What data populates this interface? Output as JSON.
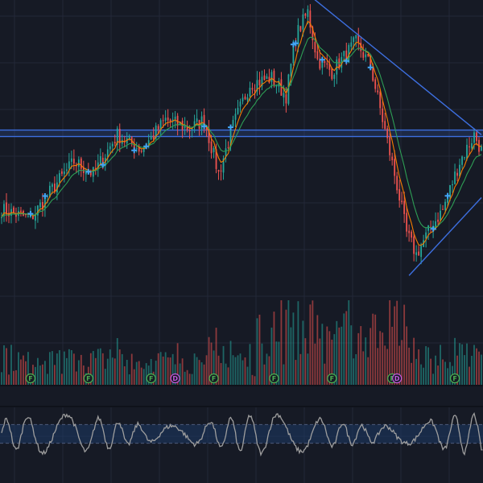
{
  "theme": {
    "background": "#161a25",
    "grid": "#232838",
    "separator": "#0f121a",
    "candle_up": "#26a69a",
    "candle_down": "#ef5350",
    "ma_fast": "#f57c00",
    "ma_slow": "#2e9e55",
    "trendline": "#3d6fe0",
    "signal_marker": "#42a5f5",
    "oscillator_line": "#9e9e9e",
    "oscillator_band": "#1e3a66",
    "badge_f": "#4caf50",
    "badge_d": "#c158dc"
  },
  "chart_data": {
    "type": "candlestick",
    "indicators": [
      "fast moving average (orange)",
      "slow moving average (green)",
      "volume histogram",
      "oscillator with band"
    ],
    "x_range": [
      0,
      200
    ],
    "y_range": [
      0,
      100
    ],
    "close_keypoints": [
      [
        0,
        30
      ],
      [
        12,
        27
      ],
      [
        22,
        38
      ],
      [
        30,
        46
      ],
      [
        38,
        42
      ],
      [
        48,
        55
      ],
      [
        58,
        50
      ],
      [
        68,
        60
      ],
      [
        78,
        57
      ],
      [
        84,
        60
      ],
      [
        90,
        42
      ],
      [
        96,
        58
      ],
      [
        103,
        72
      ],
      [
        112,
        74
      ],
      [
        118,
        68
      ],
      [
        122,
        88
      ],
      [
        127,
        96
      ],
      [
        131,
        80
      ],
      [
        137,
        76
      ],
      [
        147,
        86
      ],
      [
        153,
        78
      ],
      [
        158,
        60
      ],
      [
        164,
        38
      ],
      [
        168,
        22
      ],
      [
        172,
        15
      ],
      [
        178,
        24
      ],
      [
        183,
        30
      ],
      [
        190,
        46
      ],
      [
        196,
        55
      ],
      [
        200,
        48
      ]
    ],
    "volatility": 3.2,
    "horizontal_level": 55.5,
    "trendlines": [
      {
        "name": "descending-resistance",
        "points": [
          [
            127,
            102
          ],
          [
            200,
            55
          ]
        ]
      },
      {
        "name": "ascending-support",
        "points": [
          [
            169,
            8
          ],
          [
            200,
            34
          ]
        ]
      }
    ],
    "signal_marker_bars": [
      12,
      18,
      36,
      42,
      55,
      60,
      84,
      95,
      121,
      122,
      133,
      143,
      153,
      179,
      185
    ],
    "event_badges": [
      {
        "bar": 12,
        "type": "F"
      },
      {
        "bar": 36,
        "type": "F"
      },
      {
        "bar": 62,
        "type": "F"
      },
      {
        "bar": 72,
        "type": "D"
      },
      {
        "bar": 88,
        "type": "F"
      },
      {
        "bar": 113,
        "type": "F"
      },
      {
        "bar": 137,
        "type": "F"
      },
      {
        "bar": 162,
        "type": "F"
      },
      {
        "bar": 164,
        "type": "D"
      },
      {
        "bar": 188,
        "type": "F"
      }
    ],
    "oscillator": {
      "range": [
        0,
        100
      ],
      "band": [
        30,
        70
      ]
    }
  }
}
